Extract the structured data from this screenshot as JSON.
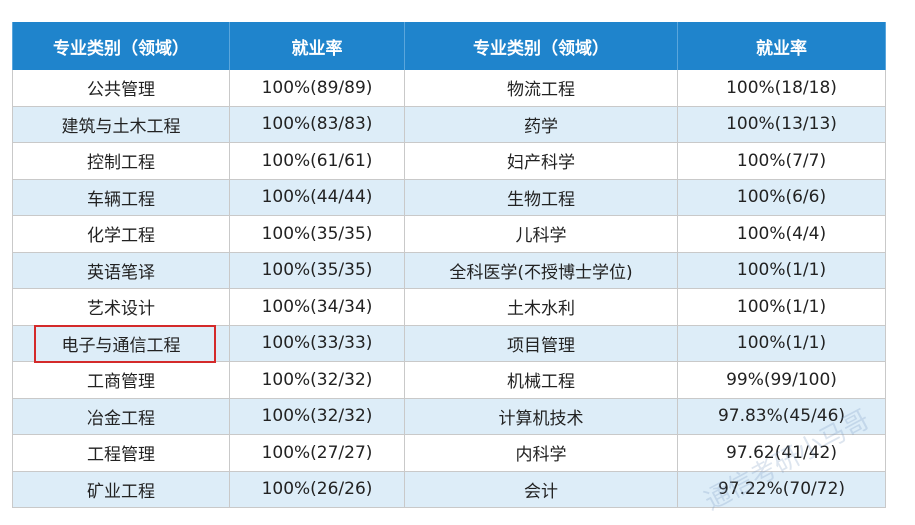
{
  "table": {
    "header": [
      "专业类别（领域）",
      "就业率",
      "专业类别（领域）",
      "就业率"
    ],
    "rows": [
      [
        "公共管理",
        "100%(89/89)",
        "物流工程",
        "100%(18/18)"
      ],
      [
        "建筑与土木工程",
        "100%(83/83)",
        "药学",
        "100%(13/13)"
      ],
      [
        "控制工程",
        "100%(61/61)",
        "妇产科学",
        "100%(7/7)"
      ],
      [
        "车辆工程",
        "100%(44/44)",
        "生物工程",
        "100%(6/6)"
      ],
      [
        "化学工程",
        "100%(35/35)",
        "儿科学",
        "100%(4/4)"
      ],
      [
        "英语笔译",
        "100%(35/35)",
        "全科医学(不授博士学位)",
        "100%(1/1)"
      ],
      [
        "艺术设计",
        "100%(34/34)",
        "土木水利",
        "100%(1/1)"
      ],
      [
        "电子与通信工程",
        "100%(33/33)",
        "项目管理",
        "100%(1/1)"
      ],
      [
        "工商管理",
        "100%(32/32)",
        "机械工程",
        "99%(99/100)"
      ],
      [
        "冶金工程",
        "100%(32/32)",
        "计算机技术",
        "97.83%(45/46)"
      ],
      [
        "工程管理",
        "100%(27/27)",
        "内科学",
        "97.62(41/42)"
      ],
      [
        "矿业工程",
        "100%(26/26)",
        "会计",
        "97.22%(70/72)"
      ]
    ]
  },
  "watermark": "通信考研小马哥"
}
